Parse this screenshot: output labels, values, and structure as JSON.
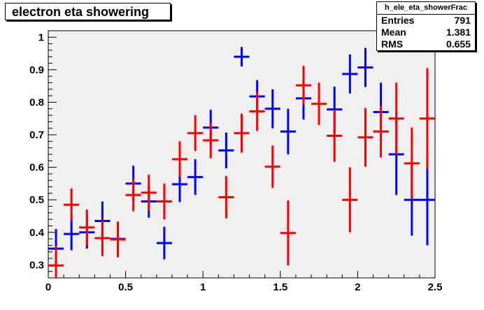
{
  "chart_data": {
    "type": "scatter",
    "title": "electron eta showering",
    "xlim": [
      0,
      2.5
    ],
    "ylim": [
      0.26,
      1.02
    ],
    "x_ticks": [
      "0",
      "0.5",
      "1",
      "1.5",
      "2",
      "2.5"
    ],
    "x_tick_values": [
      0,
      0.5,
      1,
      1.5,
      2,
      2.5
    ],
    "y_ticks": [
      "0.3",
      "0.4",
      "0.5",
      "0.6",
      "0.7",
      "0.8",
      "0.9",
      "1"
    ],
    "y_tick_values": [
      0.3,
      0.4,
      0.5,
      0.6,
      0.7,
      0.8,
      0.9,
      1.0
    ],
    "x_bin_halfwidth": 0.05,
    "grid": false,
    "background": "#f0f0f0",
    "stats": {
      "name": "h_ele_eta_showerFrac",
      "rows": [
        {
          "label": "Entries",
          "value": "791"
        },
        {
          "label": "Mean",
          "value": "1.381"
        },
        {
          "label": "RMS",
          "value": "0.655"
        }
      ]
    },
    "series": [
      {
        "color": "#0000ff",
        "points": [
          {
            "x": 0.05,
            "y": 0.35,
            "err": 0.06
          },
          {
            "x": 0.15,
            "y": 0.395,
            "err": 0.05
          },
          {
            "x": 0.25,
            "y": 0.4,
            "err": 0.05
          },
          {
            "x": 0.35,
            "y": 0.435,
            "err": 0.06
          },
          {
            "x": 0.45,
            "y": 0.38,
            "err": 0.05
          },
          {
            "x": 0.55,
            "y": 0.55,
            "err": 0.055
          },
          {
            "x": 0.65,
            "y": 0.495,
            "err": 0.05
          },
          {
            "x": 0.75,
            "y": 0.367,
            "err": 0.05
          },
          {
            "x": 0.85,
            "y": 0.548,
            "err": 0.055
          },
          {
            "x": 0.95,
            "y": 0.57,
            "err": 0.055
          },
          {
            "x": 1.05,
            "y": 0.722,
            "err": 0.055
          },
          {
            "x": 1.15,
            "y": 0.652,
            "err": 0.055
          },
          {
            "x": 1.25,
            "y": 0.94,
            "err": 0.03
          },
          {
            "x": 1.35,
            "y": 0.818,
            "err": 0.05
          },
          {
            "x": 1.45,
            "y": 0.78,
            "err": 0.06
          },
          {
            "x": 1.55,
            "y": 0.71,
            "err": 0.07
          },
          {
            "x": 1.65,
            "y": 0.812,
            "err": 0.065
          },
          {
            "x": 1.85,
            "y": 0.778,
            "err": 0.07
          },
          {
            "x": 1.95,
            "y": 0.887,
            "err": 0.06
          },
          {
            "x": 2.05,
            "y": 0.907,
            "err": 0.06
          },
          {
            "x": 2.15,
            "y": 0.77,
            "err": 0.09
          },
          {
            "x": 2.25,
            "y": 0.64,
            "err": 0.125
          },
          {
            "x": 2.35,
            "y": 0.5,
            "err": 0.11
          },
          {
            "x": 2.45,
            "y": 0.5,
            "err": 0.14
          }
        ]
      },
      {
        "color": "#ff0000",
        "points": [
          {
            "x": 0.05,
            "y": 0.298,
            "err": 0.06
          },
          {
            "x": 0.15,
            "y": 0.485,
            "err": 0.05
          },
          {
            "x": 0.25,
            "y": 0.415,
            "err": 0.055
          },
          {
            "x": 0.35,
            "y": 0.382,
            "err": 0.055
          },
          {
            "x": 0.45,
            "y": 0.378,
            "err": 0.055
          },
          {
            "x": 0.55,
            "y": 0.515,
            "err": 0.05
          },
          {
            "x": 0.65,
            "y": 0.522,
            "err": 0.055
          },
          {
            "x": 0.75,
            "y": 0.495,
            "err": 0.055
          },
          {
            "x": 0.85,
            "y": 0.625,
            "err": 0.055
          },
          {
            "x": 0.95,
            "y": 0.705,
            "err": 0.055
          },
          {
            "x": 1.05,
            "y": 0.683,
            "err": 0.055
          },
          {
            "x": 1.15,
            "y": 0.508,
            "err": 0.065
          },
          {
            "x": 1.25,
            "y": 0.705,
            "err": 0.06
          },
          {
            "x": 1.35,
            "y": 0.772,
            "err": 0.06
          },
          {
            "x": 1.45,
            "y": 0.602,
            "err": 0.065
          },
          {
            "x": 1.55,
            "y": 0.398,
            "err": 0.1
          },
          {
            "x": 1.65,
            "y": 0.852,
            "err": 0.06
          },
          {
            "x": 1.75,
            "y": 0.795,
            "err": 0.065
          },
          {
            "x": 1.85,
            "y": 0.697,
            "err": 0.08
          },
          {
            "x": 1.95,
            "y": 0.5,
            "err": 0.1
          },
          {
            "x": 2.05,
            "y": 0.692,
            "err": 0.09
          },
          {
            "x": 2.15,
            "y": 0.71,
            "err": 0.08
          },
          {
            "x": 2.25,
            "y": 0.75,
            "err": 0.11
          },
          {
            "x": 2.35,
            "y": 0.612,
            "err": 0.11
          },
          {
            "x": 2.45,
            "y": 0.75,
            "err": 0.155
          }
        ]
      }
    ]
  }
}
